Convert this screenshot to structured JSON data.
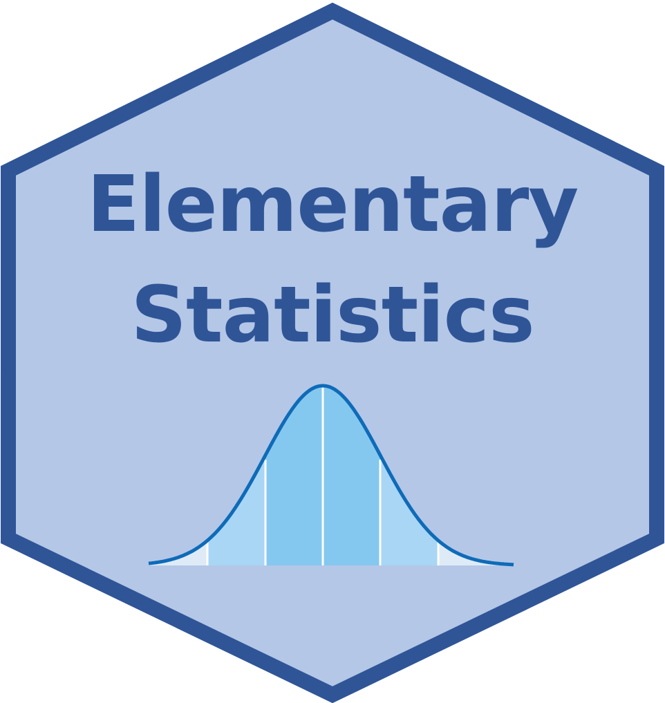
{
  "badge": {
    "title_line_1": "Elementary",
    "title_line_2": "Statistics"
  },
  "colors": {
    "border": "#2F5597",
    "fill": "#B4C7E7",
    "title": "#2F5597",
    "curve_line": "#0E6BB8",
    "band_outer": "#DEEBF7",
    "band_middle": "#A9D6F5",
    "band_inner": "#85C8EF",
    "divider": "#FFFFFF"
  },
  "icons": {
    "graphic": "normal-distribution-curve-icon"
  }
}
